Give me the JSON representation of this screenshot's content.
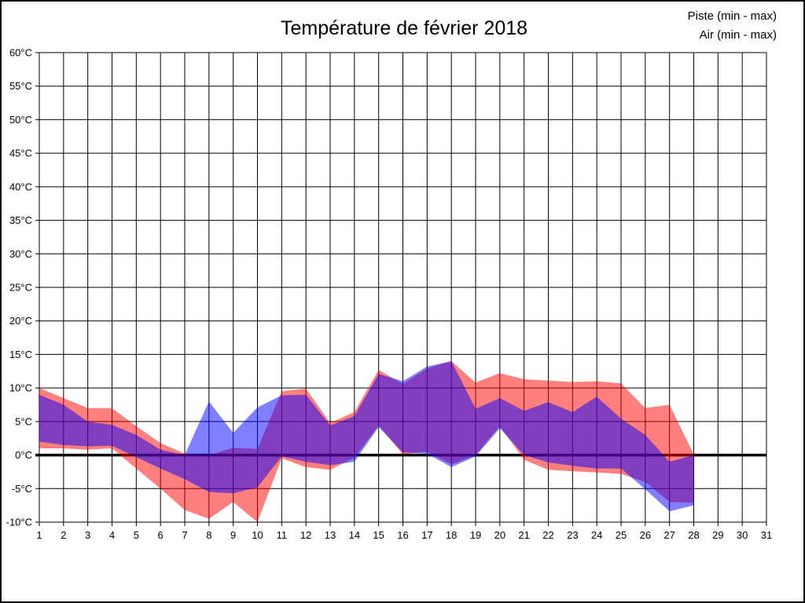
{
  "chart_data": {
    "type": "area",
    "subtype": "min-max-bands",
    "title": "Température de février 2018",
    "legend_position": "top-right",
    "legend": [
      {
        "label": "Piste (min - max)",
        "color": "#ff0000"
      },
      {
        "label": "Air (min - max)",
        "color": "#0000ff"
      }
    ],
    "grid": {
      "visible": true,
      "x_step_days": 1,
      "y_step_deg": 5,
      "line_color": "#000000"
    },
    "x_axis": {
      "min": 1,
      "max": 31,
      "tick_labels": [
        "1",
        "2",
        "3",
        "4",
        "5",
        "6",
        "7",
        "8",
        "9",
        "10",
        "11",
        "12",
        "13",
        "14",
        "15",
        "16",
        "17",
        "18",
        "19",
        "20",
        "21",
        "22",
        "23",
        "24",
        "25",
        "26",
        "27",
        "28",
        "29",
        "30",
        "31"
      ]
    },
    "y_axis": {
      "unit": "°C",
      "min": -10,
      "max": 60,
      "tick_values": [
        60,
        55,
        50,
        45,
        40,
        35,
        30,
        25,
        20,
        15,
        10,
        5,
        0,
        -5,
        -10
      ],
      "tick_labels": [
        "60°C",
        "55°C",
        "50°C",
        "45°C",
        "40°C",
        "35°C",
        "30°C",
        "25°C",
        "20°C",
        "15°C",
        "10°C",
        "5°C",
        "0°C",
        "-5°C",
        "-10°C"
      ]
    },
    "zero_line": {
      "value": 0,
      "bold": true,
      "color": "#000000"
    },
    "days": [
      1,
      2,
      3,
      4,
      5,
      6,
      7,
      8,
      9,
      10,
      11,
      12,
      13,
      14,
      15,
      16,
      17,
      18,
      19,
      20,
      21,
      22,
      23,
      24,
      25,
      26,
      27,
      28
    ],
    "series": [
      {
        "name": "Piste",
        "label": "Piste (min - max)",
        "color": "#ff0000",
        "fill_opacity": 0.5,
        "min": [
          1,
          1,
          0.8,
          1,
          -2,
          -5,
          -8.2,
          -9.5,
          -7,
          -10,
          -0.5,
          -1.8,
          -2.2,
          -0.4,
          4.4,
          0.1,
          0.5,
          -1.4,
          0,
          4.3,
          -0.7,
          -2.2,
          -2.4,
          -2.6,
          -2.8,
          -4,
          -7,
          -7.1
        ],
        "max": [
          10,
          8.5,
          7,
          7,
          4.3,
          1.8,
          0.2,
          0,
          1.1,
          0.9,
          9.5,
          9.9,
          4.8,
          6.4,
          12.7,
          10.6,
          12.9,
          14,
          10.8,
          12.2,
          11.3,
          11.1,
          10.9,
          11,
          10.7,
          7,
          7.5,
          0.1
        ]
      },
      {
        "name": "Air",
        "label": "Air (min - max)",
        "color": "#0000ff",
        "fill_opacity": 0.5,
        "min": [
          2,
          1.5,
          1.3,
          1.4,
          -0.3,
          -2,
          -3.6,
          -5.5,
          -5.7,
          -4.8,
          -0.2,
          -1,
          -1.5,
          -1,
          4.2,
          0.4,
          0.2,
          -1.8,
          -0.2,
          4,
          0,
          -1.1,
          -1.6,
          -2,
          -2,
          -5.1,
          -8.4,
          -7.5
        ],
        "max": [
          9,
          7.5,
          5,
          4.5,
          3,
          0.8,
          0,
          8,
          3.3,
          7.1,
          8.9,
          9,
          4.4,
          5.8,
          12.1,
          11,
          13.2,
          14,
          6.9,
          8.5,
          6.6,
          7.9,
          6.4,
          8.7,
          5.4,
          3,
          -1,
          0
        ]
      }
    ]
  }
}
